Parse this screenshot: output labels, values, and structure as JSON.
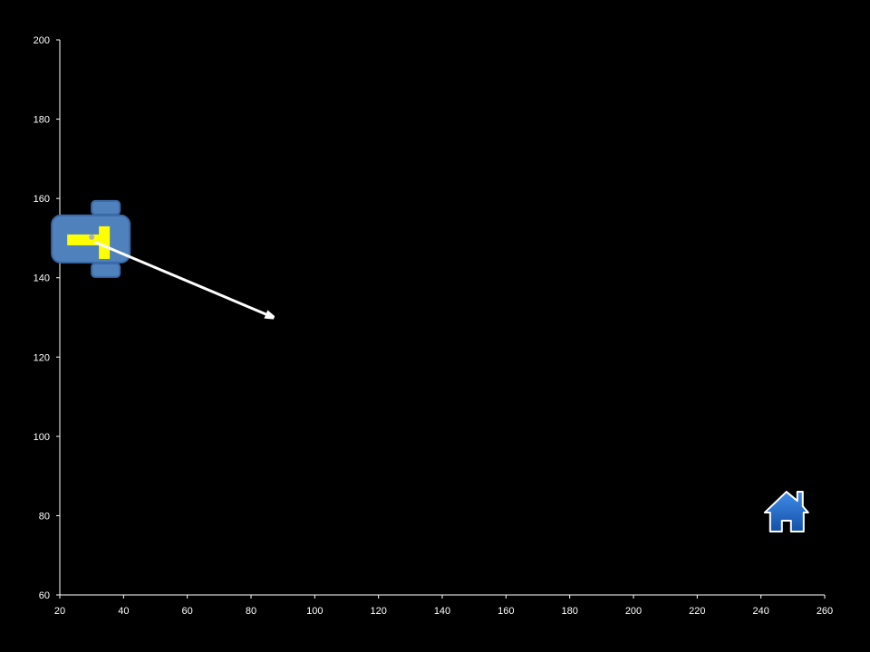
{
  "chart_data": {
    "type": "scatter",
    "xlim": [
      20,
      260
    ],
    "ylim": [
      60,
      200
    ],
    "x_ticks": [
      20,
      40,
      60,
      80,
      100,
      120,
      140,
      160,
      180,
      200,
      220,
      240,
      260
    ],
    "y_ticks": [
      60,
      80,
      100,
      120,
      140,
      160,
      180,
      200
    ],
    "grid": false,
    "background_color": "#000000",
    "axis_color": "#ffffff",
    "robot": {
      "icon": "robot-icon",
      "x": 30,
      "y": 150,
      "body_color": "#4f81bd",
      "marker_color": "#ffff00"
    },
    "heading_arrow": {
      "from": {
        "x": 31,
        "y": 149
      },
      "to": {
        "x": 87,
        "y": 130
      },
      "color": "#ffffff"
    },
    "home": {
      "icon": "home-icon",
      "x": 248,
      "y": 81,
      "color": "#1f5fbf"
    }
  }
}
